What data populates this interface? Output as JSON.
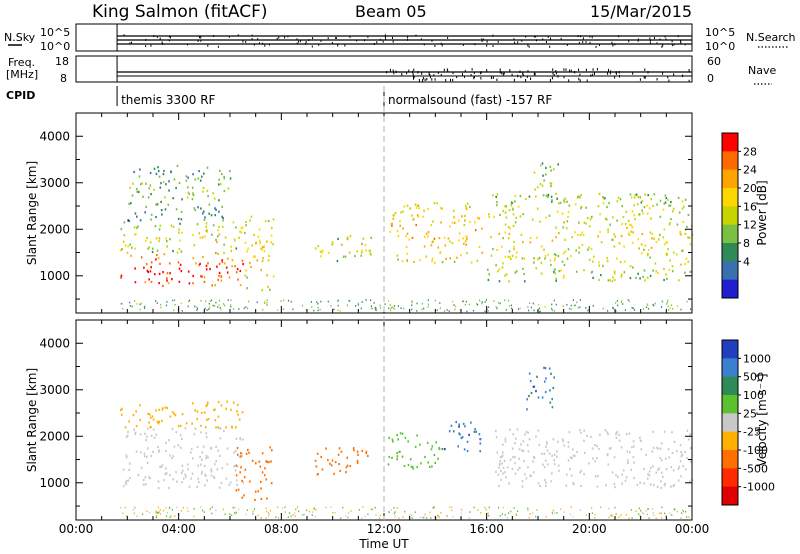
{
  "header": {
    "station": "King Salmon (fitACF)",
    "beam": "Beam 05",
    "date": "15/Mar/2015"
  },
  "strips": {
    "nsky": {
      "label": "N.Sky",
      "ticks": [
        "10^5",
        "10^0"
      ]
    },
    "freq": {
      "label_line1": "Freq.",
      "label_line2": "[MHz]",
      "ticks": [
        "18",
        "8"
      ]
    },
    "nsearch": {
      "label": "N.Search",
      "ticks": [
        "10^5",
        "10^0"
      ]
    },
    "nave": {
      "label": "Nave",
      "ticks": [
        "60",
        "0"
      ]
    },
    "cpid": {
      "label": "CPID",
      "segments": [
        {
          "start_hour": 1.6,
          "text": "themis 3300 RF"
        },
        {
          "start_hour": 12.0,
          "text": "normalsound (fast) -157 RF"
        }
      ]
    }
  },
  "axes": {
    "xlabel": "Time UT",
    "ylabel": "Slant Range [km]",
    "xticks": [
      "00:00",
      "04:00",
      "08:00",
      "12:00",
      "16:00",
      "20:00",
      "00:00"
    ],
    "yticks": [
      "1000",
      "2000",
      "3000",
      "4000"
    ]
  },
  "colorbars": {
    "power": {
      "label": "Power [dB]",
      "ticks": [
        "28",
        "24",
        "20",
        "16",
        "12",
        "8",
        "4"
      ],
      "colors": [
        "#ff0000",
        "#ff6a00",
        "#ffa500",
        "#ffd700",
        "#c8d400",
        "#7ac143",
        "#2e8b57",
        "#3a6fb0",
        "#1f1fd0"
      ]
    },
    "velocity": {
      "label": "Velocity [m s⁻¹]",
      "ticks": [
        "1000",
        "500",
        "100",
        "25",
        "-25",
        "-100",
        "-500",
        "-1000"
      ],
      "colors": [
        "#1f3fbf",
        "#3a7fd0",
        "#2e8b57",
        "#5cc12e",
        "#c8c8c8",
        "#ffb000",
        "#ff7000",
        "#ff2a00",
        "#e00000"
      ]
    }
  },
  "chart_data": [
    {
      "type": "heatmap",
      "title": "Power",
      "xlabel": "Time UT",
      "ylabel": "Slant Range [km]",
      "xlim": [
        0,
        24
      ],
      "ylim": [
        200,
        4500
      ],
      "colorbar_range": [
        0,
        30
      ],
      "regions": [
        {
          "t0": 1.7,
          "t1": 6.5,
          "r0": 800,
          "r1": 1500,
          "value": 24
        },
        {
          "t0": 1.7,
          "t1": 6.5,
          "r0": 1500,
          "r1": 2200,
          "value": 12
        },
        {
          "t0": 2.0,
          "t1": 6.0,
          "r0": 2200,
          "r1": 3400,
          "value": 6
        },
        {
          "t0": 6.5,
          "t1": 7.7,
          "r0": 700,
          "r1": 2300,
          "value": 14
        },
        {
          "t0": 9.3,
          "t1": 11.6,
          "r0": 1300,
          "r1": 1900,
          "value": 12
        },
        {
          "t0": 12.2,
          "t1": 15.8,
          "r0": 1300,
          "r1": 2600,
          "value": 16
        },
        {
          "t0": 16.0,
          "t1": 24.0,
          "r0": 900,
          "r1": 2800,
          "value": 12
        },
        {
          "t0": 17.8,
          "t1": 18.8,
          "r0": 2600,
          "r1": 3500,
          "value": 8
        }
      ]
    },
    {
      "type": "heatmap",
      "title": "Velocity",
      "xlabel": "Time UT",
      "ylabel": "Slant Range [km]",
      "xlim": [
        0,
        24
      ],
      "ylim": [
        200,
        4500
      ],
      "regions": [
        {
          "t0": 1.7,
          "t1": 6.5,
          "r0": 900,
          "r1": 2200,
          "value": 0
        },
        {
          "t0": 1.7,
          "t1": 6.5,
          "r0": 2200,
          "r1": 2800,
          "value": -50
        },
        {
          "t0": 6.2,
          "t1": 7.6,
          "r0": 600,
          "r1": 1800,
          "value": -300
        },
        {
          "t0": 9.3,
          "t1": 11.6,
          "r0": 1200,
          "r1": 1800,
          "value": -300
        },
        {
          "t0": 12.1,
          "t1": 14.2,
          "r0": 1300,
          "r1": 2100,
          "value": 60
        },
        {
          "t0": 14.2,
          "t1": 15.8,
          "r0": 1700,
          "r1": 2400,
          "value": 700
        },
        {
          "t0": 16.3,
          "t1": 24.0,
          "r0": 900,
          "r1": 2200,
          "value": 0
        },
        {
          "t0": 17.5,
          "t1": 18.6,
          "r0": 2600,
          "r1": 3500,
          "value": 700
        }
      ]
    }
  ]
}
